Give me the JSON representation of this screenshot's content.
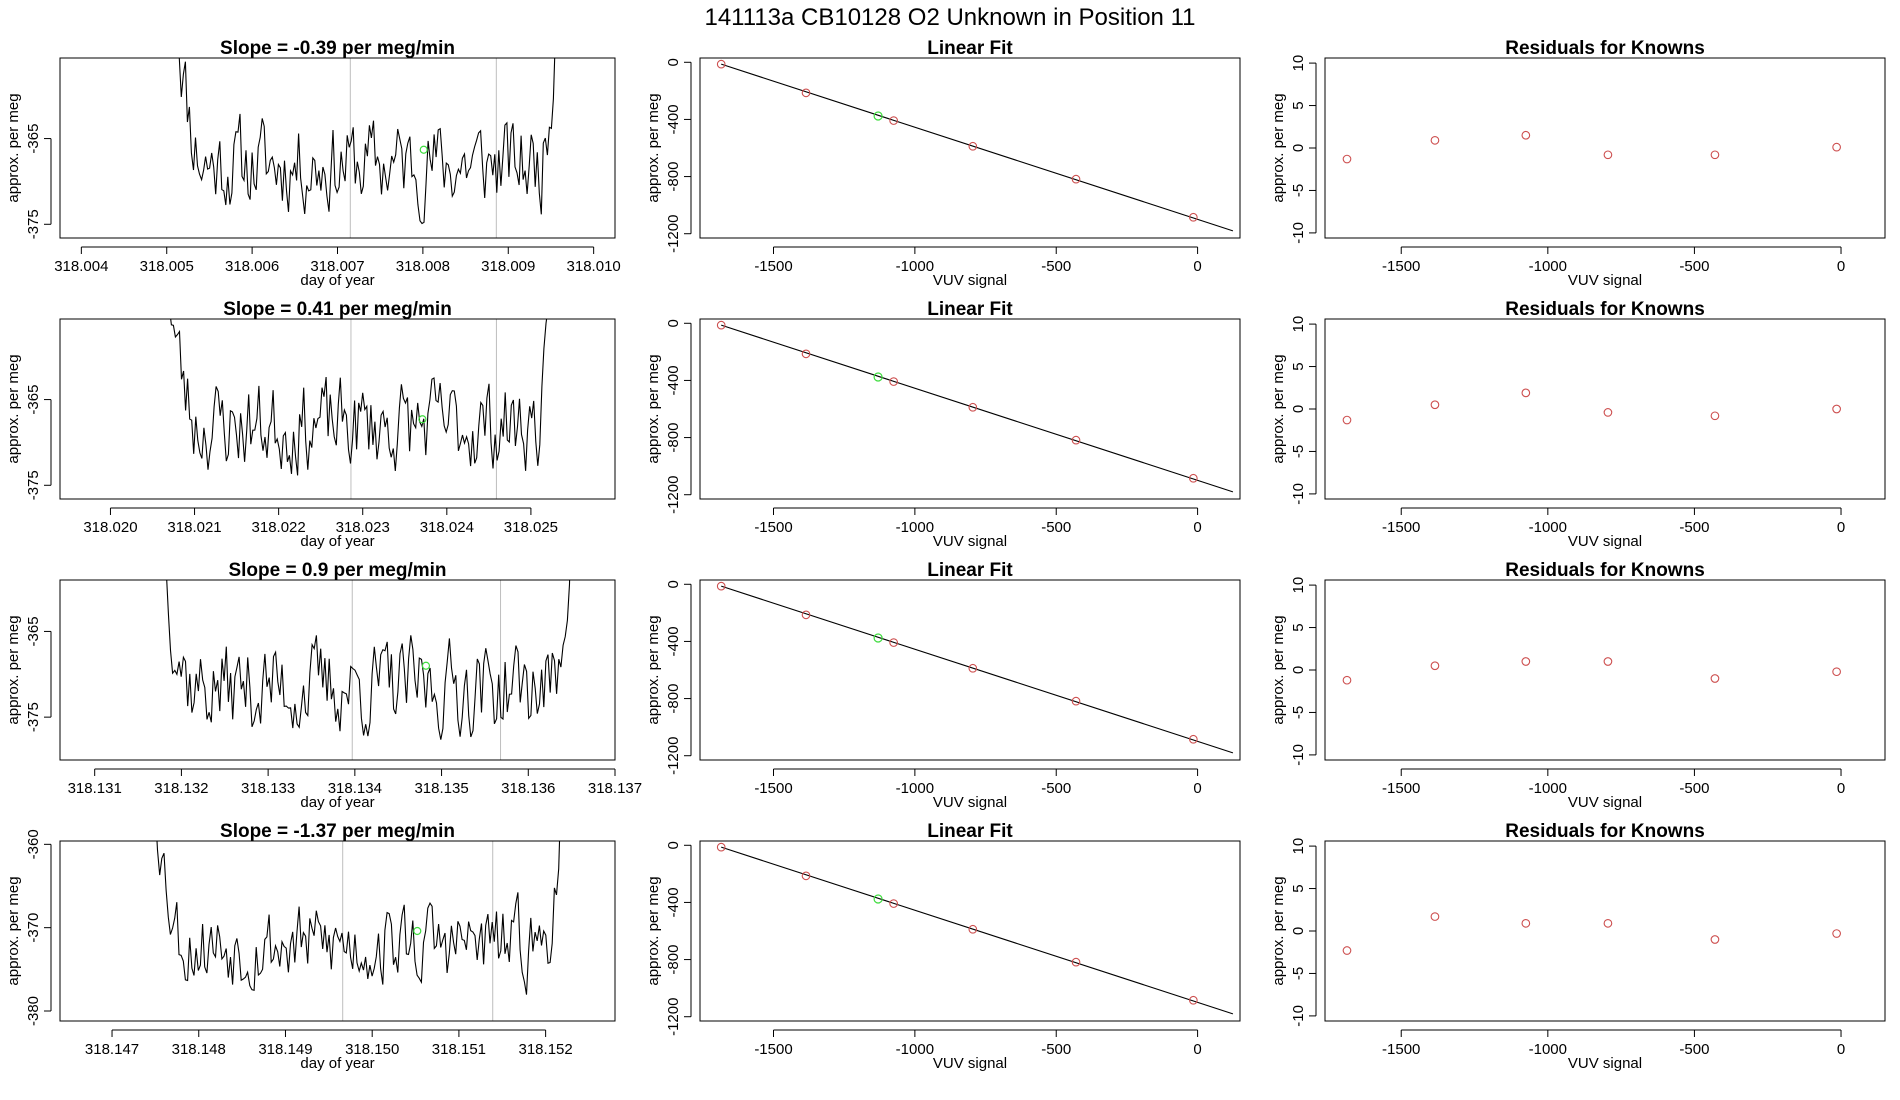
{
  "header": {
    "title": "141113a      CB10128    O2 Unknown in Position  11"
  },
  "colors": {
    "line": "#000000",
    "marker_residual": "#cd4f4f",
    "marker_highlight": "#3fdc3f",
    "grid_vline": "#bebebe",
    "box": "#000000"
  },
  "chart_data": [
    {
      "type": "line",
      "row": 0,
      "col": 0,
      "title": "Slope =  -0.39  per meg/min",
      "xlabel": "day of year",
      "ylabel": "approx. per meg",
      "xlim": [
        318.00375,
        318.01025
      ],
      "ylim": [
        -376.6,
        -355.6
      ],
      "xticks": [
        318.004,
        318.005,
        318.006,
        318.007,
        318.008,
        318.009,
        318.01
      ],
      "xtick_labels": [
        "318.004",
        "318.005",
        "318.006",
        "318.007",
        "318.008",
        "318.009",
        "318.010"
      ],
      "yticks": [
        -375,
        -365
      ],
      "ytick_labels": [
        "-375",
        "-365"
      ],
      "vlines": [
        318.00715,
        318.00886
      ],
      "x_start": 318.0051,
      "x_end": 318.0096,
      "y_edge_start": -348,
      "y_edge_end": -340,
      "y_mean": -368,
      "y_amp": 3.2,
      "highlight_point": [
        318.00801,
        -366.3
      ],
      "seed": 11
    },
    {
      "type": "scatter",
      "row": 0,
      "col": 1,
      "title": "Linear Fit",
      "xlabel": "VUV signal",
      "ylabel": "approx. per meg",
      "xlim": [
        -1760,
        150
      ],
      "ylim": [
        -1230,
        30
      ],
      "xticks": [
        -1500,
        -1000,
        -500,
        0
      ],
      "xtick_labels": [
        "-1500",
        "-1000",
        "-500",
        "0"
      ],
      "yticks": [
        -1200,
        -800,
        -400,
        0
      ],
      "ytick_labels": [
        "-1200",
        "-800",
        "-400",
        "0"
      ],
      "points": [
        [
          -1685,
          -13
        ],
        [
          -1385,
          -214
        ],
        [
          -1075,
          -408
        ],
        [
          -795,
          -588
        ],
        [
          -430,
          -818
        ],
        [
          -15,
          -1085
        ]
      ],
      "highlight_point": [
        -1130,
        -376
      ],
      "fit_line": [
        [
          -1685,
          -13
        ],
        [
          125,
          -1180
        ]
      ]
    },
    {
      "type": "scatter",
      "row": 0,
      "col": 2,
      "title": "Residuals for Knowns",
      "xlabel": "VUV signal",
      "ylabel": "approx. per meg",
      "xlim": [
        -1760,
        150
      ],
      "ylim": [
        -10.6,
        10.6
      ],
      "xticks": [
        -1500,
        -1000,
        -500,
        0
      ],
      "xtick_labels": [
        "-1500",
        "-1000",
        "-500",
        "0"
      ],
      "yticks": [
        -10,
        -5,
        0,
        5,
        10
      ],
      "ytick_labels": [
        "-10",
        "-5",
        "0",
        "5",
        "10"
      ],
      "points": [
        [
          -1685,
          -1.3
        ],
        [
          -1385,
          0.9
        ],
        [
          -1075,
          1.5
        ],
        [
          -795,
          -0.8
        ],
        [
          -430,
          -0.8
        ],
        [
          -15,
          0.1
        ]
      ]
    },
    {
      "type": "line",
      "row": 1,
      "col": 0,
      "title": "Slope =  0.41  per meg/min",
      "xlabel": "day of year",
      "ylabel": "approx. per meg",
      "xlim": [
        318.0194,
        318.026
      ],
      "ylim": [
        -376.6,
        -355.6
      ],
      "xticks": [
        318.02,
        318.021,
        318.022,
        318.023,
        318.024,
        318.025
      ],
      "xtick_labels": [
        "318.020",
        "318.021",
        "318.022",
        "318.023",
        "318.024",
        "318.025"
      ],
      "yticks": [
        -375,
        -365
      ],
      "ytick_labels": [
        "-375",
        "-365"
      ],
      "vlines": [
        318.02286,
        318.02459
      ],
      "x_start": 318.0207,
      "x_end": 318.0253,
      "y_edge_start": -352,
      "y_edge_end": -344,
      "y_mean": -368,
      "y_amp": 3.2,
      "highlight_point": [
        318.02371,
        -367.3
      ],
      "seed": 23
    },
    {
      "type": "scatter",
      "row": 1,
      "col": 1,
      "title": "Linear Fit",
      "xlabel": "VUV signal",
      "ylabel": "approx. per meg",
      "xlim": [
        -1760,
        150
      ],
      "ylim": [
        -1230,
        30
      ],
      "xticks": [
        -1500,
        -1000,
        -500,
        0
      ],
      "xtick_labels": [
        "-1500",
        "-1000",
        "-500",
        "0"
      ],
      "yticks": [
        -1200,
        -800,
        -400,
        0
      ],
      "ytick_labels": [
        "-1200",
        "-800",
        "-400",
        "0"
      ],
      "points": [
        [
          -1685,
          -13
        ],
        [
          -1385,
          -214
        ],
        [
          -1075,
          -408
        ],
        [
          -795,
          -588
        ],
        [
          -430,
          -818
        ],
        [
          -15,
          -1085
        ]
      ],
      "highlight_point": [
        -1130,
        -376
      ],
      "fit_line": [
        [
          -1685,
          -13
        ],
        [
          125,
          -1180
        ]
      ]
    },
    {
      "type": "scatter",
      "row": 1,
      "col": 2,
      "title": "Residuals for Knowns",
      "xlabel": "VUV signal",
      "ylabel": "approx. per meg",
      "xlim": [
        -1760,
        150
      ],
      "ylim": [
        -10.6,
        10.6
      ],
      "xticks": [
        -1500,
        -1000,
        -500,
        0
      ],
      "xtick_labels": [
        "-1500",
        "-1000",
        "-500",
        "0"
      ],
      "yticks": [
        -10,
        -5,
        0,
        5,
        10
      ],
      "ytick_labels": [
        "-10",
        "-5",
        "0",
        "5",
        "10"
      ],
      "points": [
        [
          -1685,
          -1.3
        ],
        [
          -1385,
          0.5
        ],
        [
          -1075,
          1.9
        ],
        [
          -795,
          -0.4
        ],
        [
          -430,
          -0.8
        ],
        [
          -15,
          0.0
        ]
      ]
    },
    {
      "type": "line",
      "row": 2,
      "col": 0,
      "title": "Slope =  0.9  per meg/min",
      "xlabel": "day of year",
      "ylabel": "approx. per meg",
      "xlim": [
        318.1306,
        318.137
      ],
      "ylim": [
        -380,
        -359
      ],
      "xticks": [
        318.131,
        318.132,
        318.133,
        318.134,
        318.135,
        318.136,
        318.137
      ],
      "xtick_labels": [
        "318.131",
        "318.132",
        "318.133",
        "318.134",
        "318.135",
        "318.136",
        "318.137"
      ],
      "yticks": [
        -375,
        -365
      ],
      "ytick_labels": [
        "-375",
        "-365"
      ],
      "vlines": [
        318.13397,
        318.13568
      ],
      "x_start": 318.1318,
      "x_end": 318.1365,
      "y_edge_start": -356,
      "y_edge_end": -350,
      "y_mean": -371.5,
      "y_amp": 3.3,
      "highlight_point": [
        318.13482,
        -369.0
      ],
      "seed": 37
    },
    {
      "type": "scatter",
      "row": 2,
      "col": 1,
      "title": "Linear Fit",
      "xlabel": "VUV signal",
      "ylabel": "approx. per meg",
      "xlim": [
        -1760,
        150
      ],
      "ylim": [
        -1230,
        30
      ],
      "xticks": [
        -1500,
        -1000,
        -500,
        0
      ],
      "xtick_labels": [
        "-1500",
        "-1000",
        "-500",
        "0"
      ],
      "yticks": [
        -1200,
        -800,
        -400,
        0
      ],
      "ytick_labels": [
        "-1200",
        "-800",
        "-400",
        "0"
      ],
      "points": [
        [
          -1685,
          -13
        ],
        [
          -1385,
          -214
        ],
        [
          -1075,
          -408
        ],
        [
          -795,
          -588
        ],
        [
          -430,
          -818
        ],
        [
          -15,
          -1085
        ]
      ],
      "highlight_point": [
        -1130,
        -376
      ],
      "fit_line": [
        [
          -1685,
          -13
        ],
        [
          125,
          -1180
        ]
      ]
    },
    {
      "type": "scatter",
      "row": 2,
      "col": 2,
      "title": "Residuals for Knowns",
      "xlabel": "VUV signal",
      "ylabel": "approx. per meg",
      "xlim": [
        -1760,
        150
      ],
      "ylim": [
        -10.6,
        10.6
      ],
      "xticks": [
        -1500,
        -1000,
        -500,
        0
      ],
      "xtick_labels": [
        "-1500",
        "-1000",
        "-500",
        "0"
      ],
      "yticks": [
        -10,
        -5,
        0,
        5,
        10
      ],
      "ytick_labels": [
        "-10",
        "-5",
        "0",
        "5",
        "10"
      ],
      "points": [
        [
          -1685,
          -1.2
        ],
        [
          -1385,
          0.5
        ],
        [
          -1075,
          1.0
        ],
        [
          -795,
          1.0
        ],
        [
          -430,
          -1.0
        ],
        [
          -15,
          -0.2
        ]
      ]
    },
    {
      "type": "line",
      "row": 3,
      "col": 0,
      "title": "Slope =  -1.37  per meg/min",
      "xlabel": "day of year",
      "ylabel": "approx. per meg",
      "xlim": [
        318.1464,
        318.1528
      ],
      "ylim": [
        -381.2,
        -359.6
      ],
      "xticks": [
        318.147,
        318.148,
        318.149,
        318.15,
        318.151,
        318.152
      ],
      "xtick_labels": [
        "318.147",
        "318.148",
        "318.149",
        "318.150",
        "318.151",
        "318.152"
      ],
      "yticks": [
        -380,
        -370,
        -360
      ],
      "ytick_labels": [
        "-380",
        "-370",
        "-360"
      ],
      "vlines": [
        318.14966,
        318.15139
      ],
      "x_start": 318.1475,
      "x_end": 318.1522,
      "y_edge_start": -354,
      "y_edge_end": -352,
      "y_mean": -372,
      "y_amp": 3.0,
      "highlight_point": [
        318.15052,
        -370.4
      ],
      "seed": 53
    },
    {
      "type": "scatter",
      "row": 3,
      "col": 1,
      "title": "Linear Fit",
      "xlabel": "VUV signal",
      "ylabel": "approx. per meg",
      "xlim": [
        -1760,
        150
      ],
      "ylim": [
        -1230,
        30
      ],
      "xticks": [
        -1500,
        -1000,
        -500,
        0
      ],
      "xtick_labels": [
        "-1500",
        "-1000",
        "-500",
        "0"
      ],
      "yticks": [
        -1200,
        -800,
        -400,
        0
      ],
      "ytick_labels": [
        "-1200",
        "-800",
        "-400",
        "0"
      ],
      "points": [
        [
          -1685,
          -13
        ],
        [
          -1385,
          -214
        ],
        [
          -1075,
          -408
        ],
        [
          -795,
          -588
        ],
        [
          -430,
          -818
        ],
        [
          -15,
          -1085
        ]
      ],
      "highlight_point": [
        -1130,
        -376
      ],
      "fit_line": [
        [
          -1685,
          -13
        ],
        [
          125,
          -1180
        ]
      ]
    },
    {
      "type": "scatter",
      "row": 3,
      "col": 2,
      "title": "Residuals for Knowns",
      "xlabel": "VUV signal",
      "ylabel": "approx. per meg",
      "xlim": [
        -1760,
        150
      ],
      "ylim": [
        -10.6,
        10.6
      ],
      "xticks": [
        -1500,
        -1000,
        -500,
        0
      ],
      "xtick_labels": [
        "-1500",
        "-1000",
        "-500",
        "0"
      ],
      "yticks": [
        -10,
        -5,
        0,
        5,
        10
      ],
      "ytick_labels": [
        "-10",
        "-5",
        "0",
        "5",
        "10"
      ],
      "points": [
        [
          -1685,
          -2.3
        ],
        [
          -1385,
          1.7
        ],
        [
          -1075,
          0.9
        ],
        [
          -795,
          0.9
        ],
        [
          -430,
          -1.0
        ],
        [
          -15,
          -0.3
        ]
      ]
    }
  ]
}
